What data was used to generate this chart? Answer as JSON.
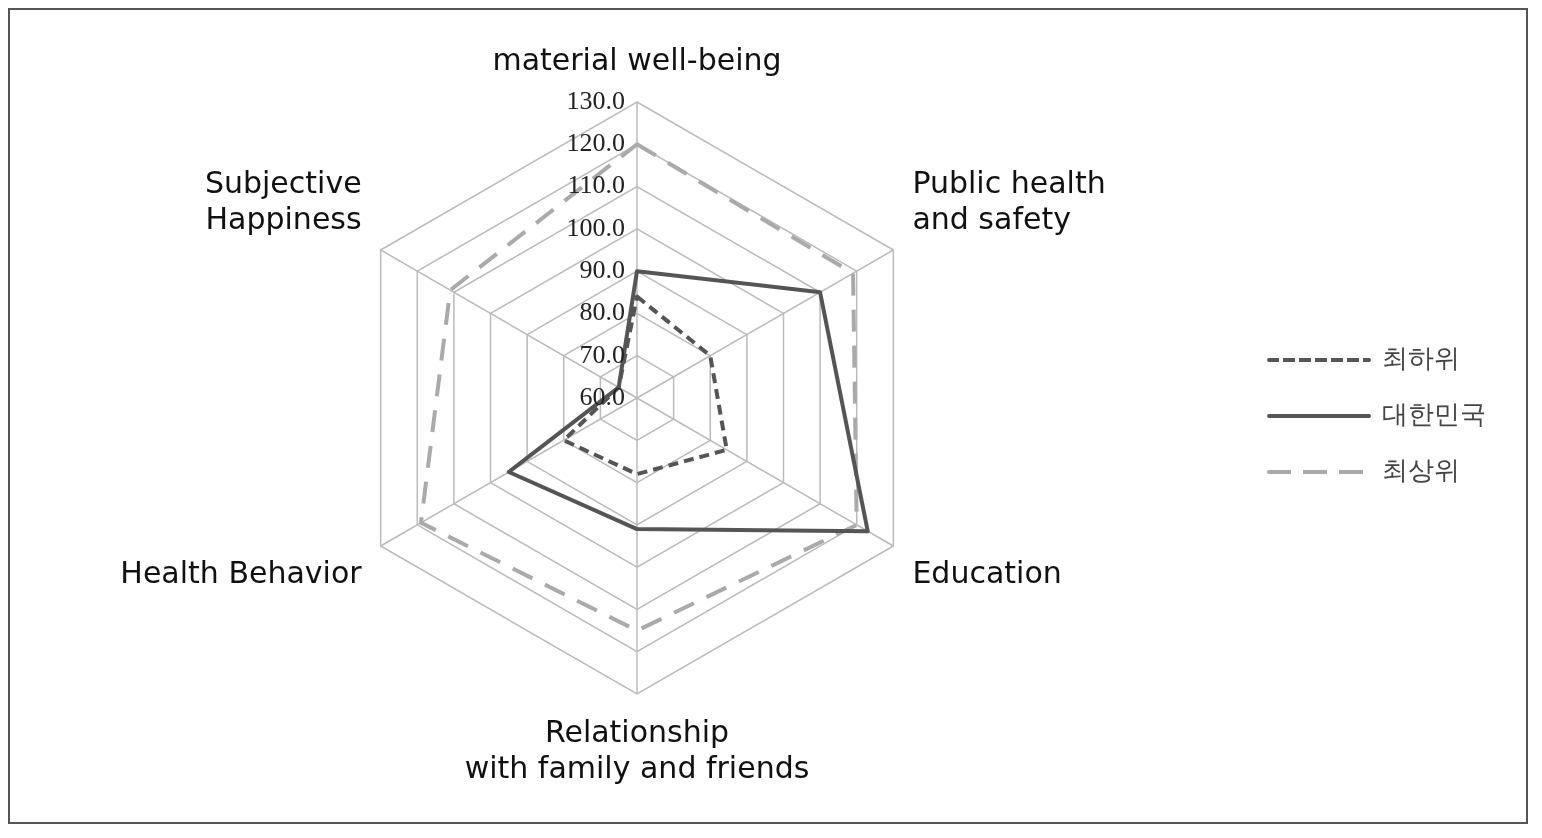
{
  "chart_data": {
    "type": "radar",
    "categories": [
      "material well-being",
      "Public health\nand safety",
      "Education",
      "Relationship\nwith family and friends",
      "Health Behavior",
      "Subjective\nHappiness"
    ],
    "series": [
      {
        "name": "최하위",
        "color": "#555555",
        "line_style": "dashed",
        "values": [
          84,
          80,
          84.5,
          78,
          80,
          65
        ]
      },
      {
        "name": "대한민국",
        "color": "#555555",
        "line_style": "solid",
        "values": [
          90,
          110,
          123,
          91,
          95,
          65
        ]
      },
      {
        "name": "최상위",
        "color": "#aaaaaa",
        "line_style": "dashed",
        "values": [
          120,
          119,
          120,
          115,
          119,
          111
        ]
      }
    ],
    "ylim": [
      60,
      130
    ],
    "yticks": [
      {
        "value": 60,
        "label": "60.0"
      },
      {
        "value": 70,
        "label": "70.0"
      },
      {
        "value": 80,
        "label": "80.0"
      },
      {
        "value": 90,
        "label": "90.0"
      },
      {
        "value": 100,
        "label": "100.0"
      },
      {
        "value": 110,
        "label": "110.0"
      },
      {
        "value": 120,
        "label": "120.0"
      },
      {
        "value": 130,
        "label": "130.0"
      }
    ],
    "grid": true,
    "legend": "right"
  }
}
